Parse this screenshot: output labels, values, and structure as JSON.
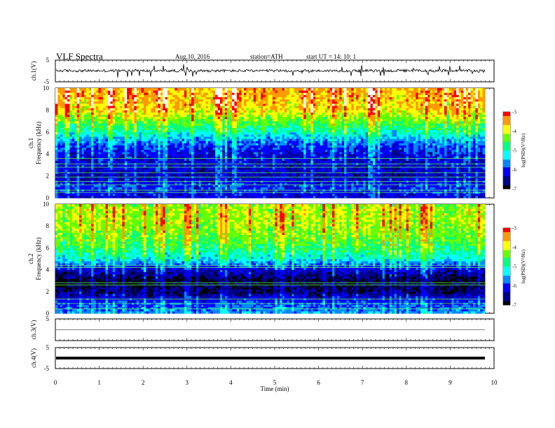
{
  "header": {
    "title": "VLF  Spectra",
    "date": "Aug.10, 2016",
    "station": "station=ATH",
    "start": "start  UT  =   14: 10: 1"
  },
  "chart_data": [
    {
      "type": "line",
      "name": "ch1-waveform",
      "ylabel": "ch.1(V)",
      "ylim": [
        -5,
        5
      ],
      "yticks": [
        "5",
        "-5"
      ],
      "xlim": [
        0,
        10
      ],
      "approx_level": 0.1,
      "approx_noise_amplitude": 1.2
    },
    {
      "type": "heatmap",
      "name": "ch1-spectrogram",
      "ylabel": "ch.1\nFrequency  (kHz)",
      "ylabel_lines": [
        "ch.1",
        "Frequency  (kHz)"
      ],
      "ylim": [
        0,
        10
      ],
      "yticks": [
        "0",
        "2",
        "4",
        "6",
        "8",
        "10"
      ],
      "xlim": [
        0,
        9.8
      ],
      "colorbar": {
        "label": "log(PSD)(V²/Hz)",
        "range": [
          -7,
          -3
        ],
        "ticks": [
          "-3",
          "-4",
          "-5",
          "-6",
          "-7"
        ]
      },
      "approx_log_psd_profile": {
        "freq_khz": [
          0,
          1,
          2,
          3,
          4,
          5,
          6,
          7,
          8,
          9,
          10
        ],
        "log_psd": [
          -6.3,
          -6.0,
          -6.4,
          -6.3,
          -6.2,
          -5.8,
          -5.0,
          -4.4,
          -3.8,
          -3.6,
          -3.5
        ]
      },
      "narrowband_lines_khz": [
        0.5,
        0.7,
        1.2,
        1.5,
        1.9,
        2.3,
        2.8,
        3.1,
        3.6
      ]
    },
    {
      "type": "heatmap",
      "name": "ch2-spectrogram",
      "ylabel": "ch.2\nFrequency  (kHz)",
      "ylabel_lines": [
        "ch.2",
        "Frequency  (kHz)"
      ],
      "ylim": [
        0,
        10
      ],
      "yticks": [
        "0",
        "2",
        "4",
        "6",
        "8",
        "10"
      ],
      "xlim": [
        0,
        9.8
      ],
      "colorbar": {
        "label": "log(PSD)(V²/Hz)",
        "range": [
          -7,
          -3
        ],
        "ticks": [
          "-3",
          "-4",
          "-5",
          "-6",
          "-7"
        ]
      },
      "approx_log_psd_profile": {
        "freq_khz": [
          0,
          1,
          2,
          3,
          4,
          5,
          6,
          7,
          8,
          9,
          10
        ],
        "log_psd": [
          -5.6,
          -6.0,
          -6.7,
          -6.9,
          -6.3,
          -5.2,
          -4.7,
          -4.4,
          -4.2,
          -4.1,
          -4.2
        ]
      },
      "narrowband_lines_khz": [
        0.4,
        0.9,
        1.3,
        2.6,
        2.8,
        4.2,
        4.4
      ]
    },
    {
      "type": "line",
      "name": "ch3-waveform",
      "ylabel": "ch.3(V)",
      "ylim": [
        -5,
        5
      ],
      "yticks": [
        "5"
      ],
      "xlim": [
        0,
        10
      ],
      "approx_level": 0.0
    },
    {
      "type": "line",
      "name": "ch4-waveform",
      "ylabel": "ch.4(V)",
      "ylim": [
        -5,
        5
      ],
      "yticks": [
        "5",
        "-5"
      ],
      "xlim": [
        0,
        10
      ],
      "approx_level": 0.0
    }
  ],
  "xaxis": {
    "label": "Time  (min)",
    "ticks": [
      "0",
      "1",
      "2",
      "3",
      "4",
      "5",
      "6",
      "7",
      "8",
      "9",
      "10"
    ],
    "range": [
      0,
      10
    ]
  },
  "colors": {
    "colormap": [
      "#000000",
      "#00008b",
      "#0000ff",
      "#0088ff",
      "#00ffff",
      "#00ff80",
      "#66ff00",
      "#ffff00",
      "#ff9900",
      "#ff0000",
      "#ffffff"
    ],
    "waveform": "#000000",
    "axes": "#000000"
  }
}
